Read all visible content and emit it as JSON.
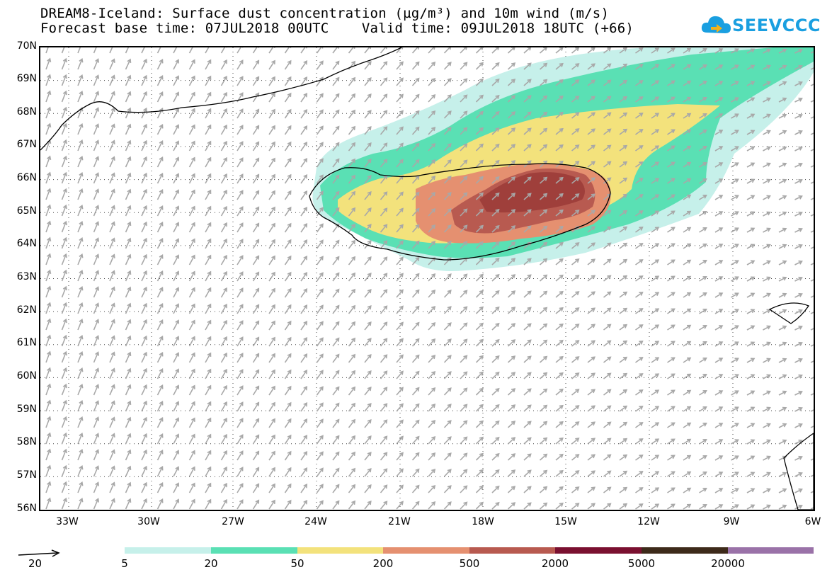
{
  "header": {
    "line1": "DREAM8-Iceland: Surface dust concentration (µg/m³) and 10m wind (m/s)",
    "line2": "Forecast base time: 07JUL2018 00UTC    Valid time: 09JUL2018 18UTC (+66)"
  },
  "logo": {
    "text": "SEEVCCC",
    "icon": "cloud-arrow-icon",
    "color": "#1a9fe0"
  },
  "map": {
    "lat_labels": [
      "70N",
      "69N",
      "68N",
      "67N",
      "66N",
      "65N",
      "64N",
      "63N",
      "62N",
      "61N",
      "60N",
      "59N",
      "58N",
      "57N",
      "56N"
    ],
    "lon_labels": [
      "33W",
      "30W",
      "27W",
      "24W",
      "21W",
      "18W",
      "15W",
      "12W",
      "9W",
      "6W"
    ]
  },
  "legend": {
    "colorbar_labels": [
      "5",
      "20",
      "50",
      "200",
      "500",
      "2000",
      "5000",
      "20000"
    ],
    "colors": [
      "#c6f0ea",
      "#5ae0b4",
      "#f3e27c",
      "#e59070",
      "#b85a50",
      "#7a1030",
      "#3d2a1a",
      "#9a72a8"
    ],
    "wind_reference": "20"
  }
}
